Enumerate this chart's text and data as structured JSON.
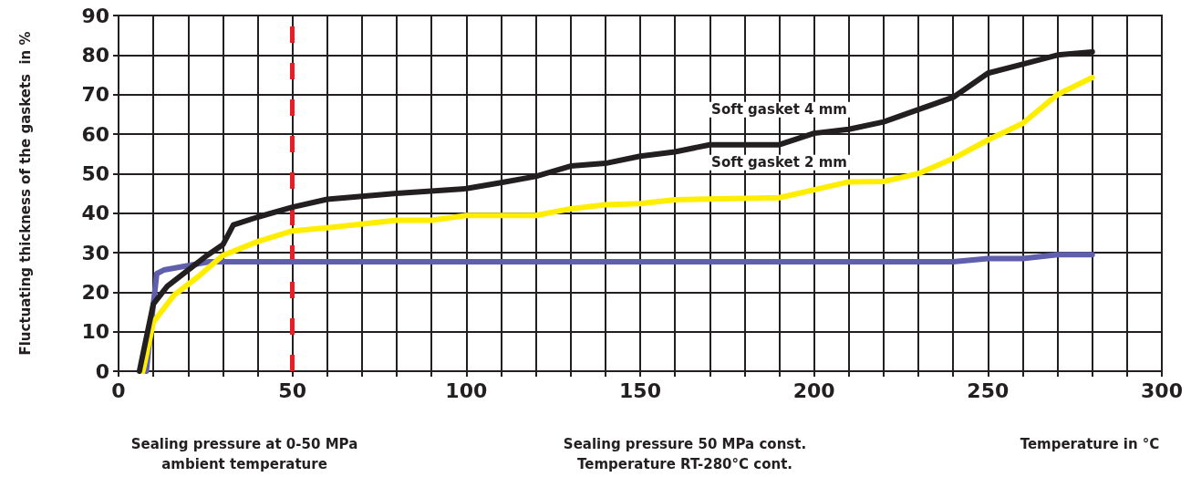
{
  "chart_data": {
    "type": "line",
    "ylabel": "Fluctuating thickness of the gaskets  in %",
    "xlim": [
      0,
      300
    ],
    "ylim": [
      0,
      90
    ],
    "xticks": [
      0,
      {
        "value": 10,
        "label": null
      },
      {
        "value": 20,
        "label": null
      },
      {
        "value": 30,
        "label": null
      },
      {
        "value": 40,
        "label": null
      },
      50,
      {
        "value": 60,
        "label": null
      },
      {
        "value": 70,
        "label": null
      },
      {
        "value": 80,
        "label": null
      },
      {
        "value": 90,
        "label": null
      },
      100,
      {
        "value": 110,
        "label": null
      },
      {
        "value": 120,
        "label": null
      },
      {
        "value": 130,
        "label": null
      },
      {
        "value": 140,
        "label": null
      },
      150,
      {
        "value": 160,
        "label": null
      },
      {
        "value": 170,
        "label": null
      },
      {
        "value": 180,
        "label": null
      },
      {
        "value": 190,
        "label": null
      },
      200,
      {
        "value": 210,
        "label": null
      },
      {
        "value": 220,
        "label": null
      },
      {
        "value": 230,
        "label": null
      },
      {
        "value": 240,
        "label": null
      },
      250,
      {
        "value": 260,
        "label": null
      },
      {
        "value": 270,
        "label": null
      },
      {
        "value": 280,
        "label": null
      },
      {
        "value": 290,
        "label": null
      },
      300
    ],
    "yticks": [
      0,
      10,
      20,
      30,
      40,
      50,
      60,
      70,
      80,
      90
    ],
    "grid": true,
    "legend": false,
    "marker": "none",
    "line_style": "solid",
    "series": [
      {
        "name": "Soft gasket 4 mm",
        "color": "#231f20",
        "x": [
          6,
          10,
          14,
          25,
          30,
          33,
          40,
          50,
          60,
          80,
          100,
          110,
          120,
          130,
          140,
          150,
          160,
          170,
          190,
          200,
          210,
          220,
          230,
          240,
          250,
          260,
          270,
          280
        ],
        "values": [
          0,
          17,
          21.5,
          29,
          32,
          37,
          39,
          41.5,
          43.5,
          45,
          46.2,
          47.7,
          49.3,
          51.9,
          52.6,
          54.4,
          55.5,
          57.3,
          57.3,
          60.2,
          61.2,
          63.1,
          66.2,
          69.3,
          75.4,
          77.7,
          80,
          80.8
        ]
      },
      {
        "name": "Soft gasket 2 mm",
        "color": "#ffee00",
        "x": [
          7,
          10,
          16,
          23,
          30,
          40,
          50,
          60,
          80,
          90,
          100,
          110,
          120,
          130,
          140,
          150,
          160,
          190,
          200,
          210,
          220,
          230,
          240,
          250,
          260,
          270,
          280
        ],
        "values": [
          0,
          12.4,
          19.3,
          24,
          29.3,
          32.8,
          35.5,
          36.3,
          38.2,
          38.2,
          39.4,
          39.4,
          39.4,
          41.1,
          42.1,
          42.4,
          43.4,
          43.9,
          45.9,
          47.9,
          48,
          50,
          53.8,
          58.5,
          62.7,
          70,
          74.3
        ]
      },
      {
        "color": "#5f5fae",
        "x": [
          8,
          10,
          11,
          13,
          20,
          26,
          240,
          250,
          260,
          270,
          280
        ],
        "values": [
          0,
          17,
          24.7,
          25.6,
          26.7,
          27.7,
          27.7,
          28.5,
          28.5,
          29.5,
          29.5
        ]
      }
    ],
    "ref_lines": [
      {
        "axis": "x",
        "value": 50,
        "color": "#ed1c24",
        "line_style": "dashed"
      }
    ],
    "annotations": [
      "Sealing pressure at 0-50 MPa\nambient temperature",
      "Sealing pressure 50 MPa const.\nTemperature RT-280°C cont.",
      "Temperature in °C"
    ]
  }
}
